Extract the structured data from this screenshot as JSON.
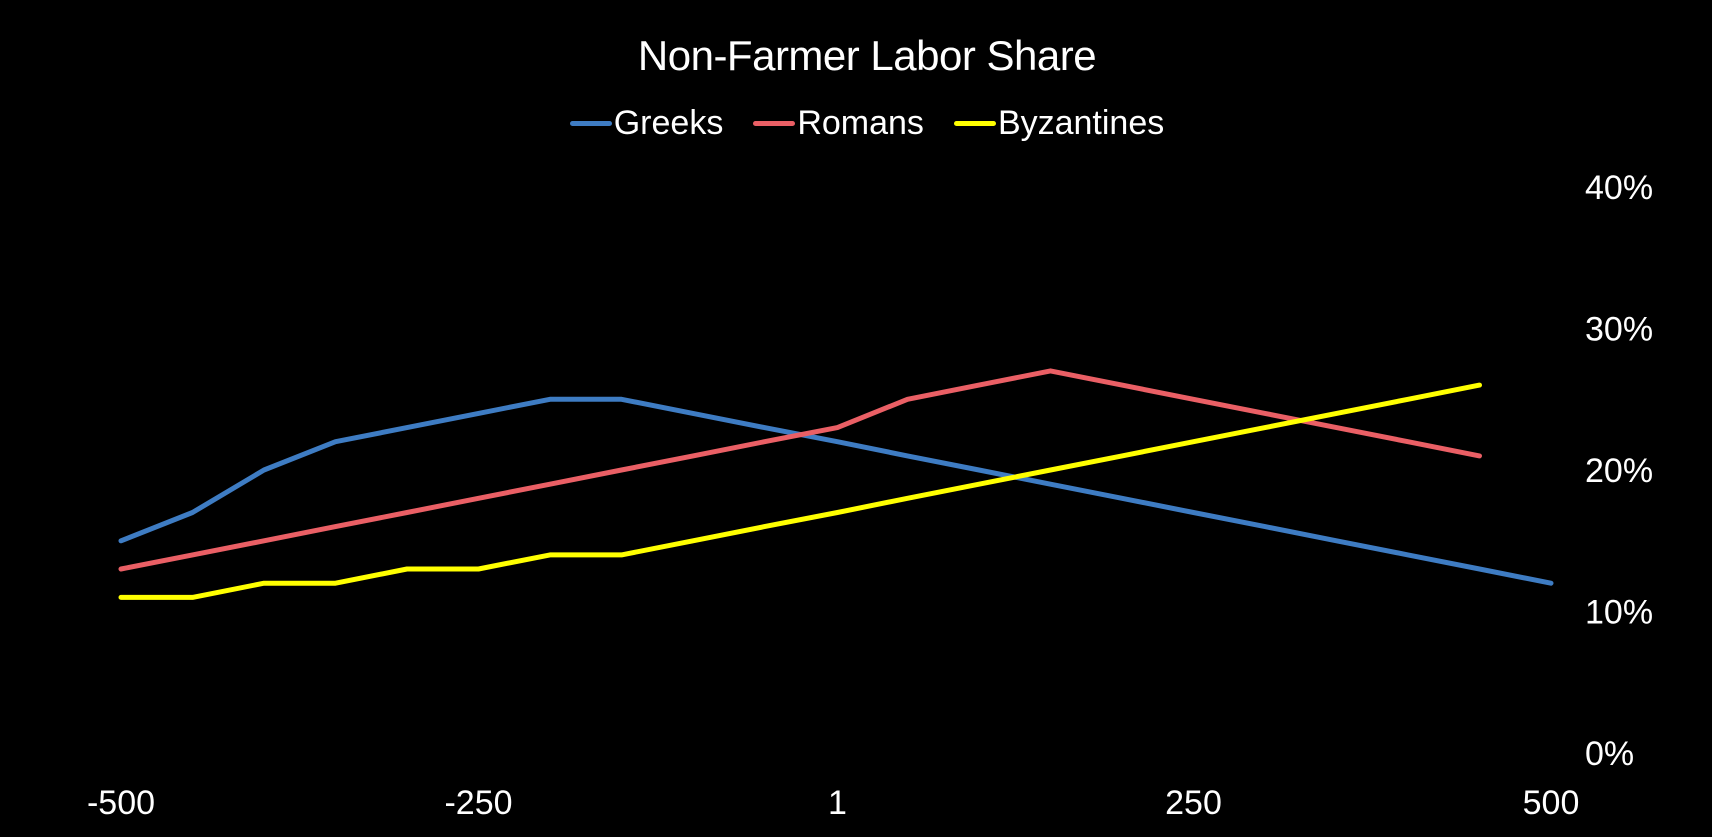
{
  "chart_data": {
    "type": "line",
    "title": "Non-Farmer Labor Share",
    "xlabel": "",
    "ylabel": "",
    "x": [
      -500,
      -450,
      -400,
      -350,
      -300,
      -250,
      -200,
      -150,
      -100,
      -50,
      1,
      50,
      100,
      150,
      200,
      250,
      300,
      350,
      400,
      450,
      500
    ],
    "xlim": [
      -500,
      500
    ],
    "ylim": [
      0,
      0.4
    ],
    "x_ticks": [
      -500,
      -250,
      1,
      250,
      500
    ],
    "x_tick_labels": [
      "-500",
      "-250",
      "1",
      "250",
      "500"
    ],
    "y_ticks": [
      0,
      0.1,
      0.2,
      0.3,
      0.4
    ],
    "y_tick_labels": [
      "0%",
      "10%",
      "20%",
      "30%",
      "40%"
    ],
    "y_axis_side": "right",
    "grid": false,
    "legend_position": "top",
    "series": [
      {
        "name": "Greeks",
        "color": "#3E7CC3",
        "values": [
          0.15,
          0.17,
          0.2,
          0.22,
          0.23,
          0.24,
          0.25,
          0.25,
          0.24,
          0.23,
          0.22,
          0.21,
          0.2,
          0.19,
          0.18,
          0.17,
          0.16,
          0.15,
          0.14,
          0.13,
          0.12
        ]
      },
      {
        "name": "Romans",
        "color": "#EA5F65",
        "values": [
          0.13,
          0.14,
          0.15,
          0.16,
          0.17,
          0.18,
          0.19,
          0.2,
          0.21,
          0.22,
          0.23,
          0.25,
          0.26,
          0.27,
          0.26,
          0.25,
          0.24,
          0.23,
          0.22,
          0.21,
          null
        ]
      },
      {
        "name": "Byzantines",
        "color": "#FFFF00",
        "values": [
          0.11,
          0.11,
          0.12,
          0.12,
          0.13,
          0.13,
          0.14,
          0.14,
          0.15,
          0.16,
          0.17,
          0.18,
          0.19,
          0.2,
          0.21,
          0.22,
          0.23,
          0.24,
          0.25,
          0.26,
          null
        ]
      }
    ]
  }
}
